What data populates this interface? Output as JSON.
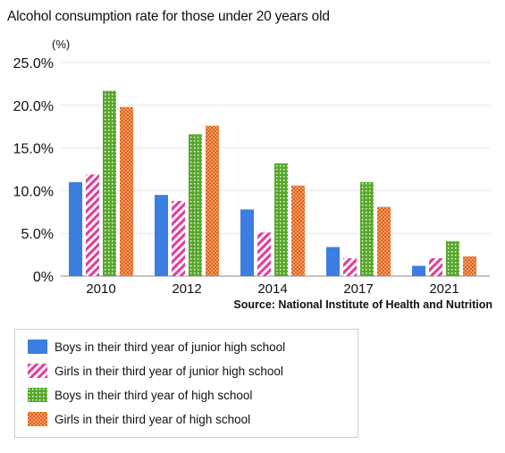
{
  "title": "Alcohol consumption rate for those under 20 years old",
  "unit_label": "(%)",
  "source": "Source: National Institute of Health and Nutrition",
  "chart_data": {
    "type": "bar",
    "title": "Alcohol consumption rate for those under 20 years old",
    "ylabel": "(%)",
    "xlabel": "",
    "categories": [
      "2010",
      "2012",
      "2014",
      "2017",
      "2021"
    ],
    "ylim": [
      0,
      25
    ],
    "yticks": [
      "0%",
      "5.0%",
      "10.0%",
      "15.0%",
      "20.0%",
      "25.0%"
    ],
    "grid": true,
    "legend": "bottom",
    "series": [
      {
        "name": "Boys in their third year of junior high school",
        "color": "#3b7de0",
        "pattern": "solid",
        "values": [
          11.0,
          9.5,
          7.8,
          3.4,
          1.2
        ]
      },
      {
        "name": "Girls in their third year of junior high school",
        "color": "#e0409a",
        "pattern": "diagonal-stripes",
        "values": [
          11.9,
          8.8,
          5.1,
          2.1,
          2.1
        ]
      },
      {
        "name": "Boys in their third year of high school",
        "color": "#58a82c",
        "pattern": "dots",
        "values": [
          21.7,
          16.6,
          13.2,
          11.0,
          4.1
        ]
      },
      {
        "name": "Girls in their third year of high school",
        "color": "#e0601a",
        "pattern": "checker",
        "values": [
          19.8,
          17.6,
          10.6,
          8.1,
          2.3
        ]
      }
    ]
  }
}
